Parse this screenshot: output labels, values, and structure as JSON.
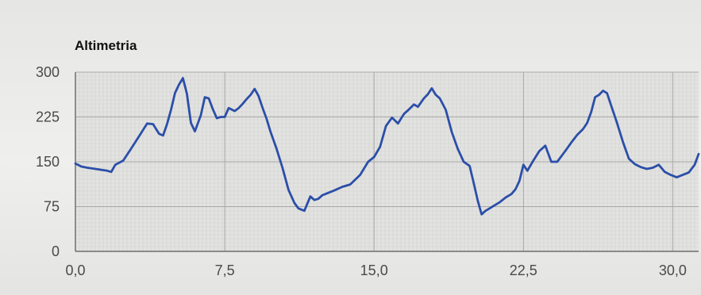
{
  "chart_data": {
    "type": "line",
    "title": "Altimetria",
    "xlabel": "",
    "ylabel": "",
    "xlim": [
      0,
      31.3
    ],
    "ylim": [
      0,
      300
    ],
    "x_ticks": [
      0,
      7.5,
      15,
      22.5,
      30
    ],
    "x_tick_labels": [
      "0,0",
      "7,5",
      "15,0",
      "22,5",
      "30,0"
    ],
    "y_ticks": [
      0,
      75,
      150,
      225,
      300
    ],
    "y_tick_labels": [
      "0",
      "75",
      "150",
      "225",
      "300"
    ],
    "grid": true,
    "legend": "none",
    "line_color": "#2b4ea8",
    "series": [
      {
        "x": [
          0,
          0.3,
          0.6,
          1.0,
          1.4,
          1.6,
          1.8,
          2.0,
          2.4,
          2.8,
          3.2,
          3.6,
          3.9,
          4.2,
          4.4,
          4.6,
          4.8,
          5.0,
          5.2,
          5.4,
          5.6,
          5.8,
          6.0,
          6.3,
          6.5,
          6.7,
          6.9,
          7.1,
          7.3,
          7.5,
          7.7,
          8.0,
          8.2,
          8.4,
          8.6,
          8.8,
          9.0,
          9.2,
          9.4,
          9.6,
          9.8,
          10.1,
          10.4,
          10.7,
          11.0,
          11.2,
          11.5,
          11.8,
          12.0,
          12.2,
          12.4,
          12.7,
          13.0,
          13.4,
          13.8,
          14.3,
          14.7,
          15.0,
          15.3,
          15.6,
          15.9,
          16.2,
          16.5,
          16.7,
          17.0,
          17.2,
          17.5,
          17.7,
          17.9,
          18.1,
          18.3,
          18.6,
          18.9,
          19.2,
          19.5,
          19.8,
          20.0,
          20.2,
          20.4,
          20.6,
          20.8,
          21.0,
          21.3,
          21.6,
          21.9,
          22.1,
          22.3,
          22.5,
          22.7,
          23.0,
          23.3,
          23.6,
          23.9,
          24.2,
          24.6,
          24.9,
          25.2,
          25.5,
          25.7,
          25.9,
          26.1,
          26.3,
          26.5,
          26.7,
          26.9,
          27.2,
          27.5,
          27.8,
          28.1,
          28.4,
          28.7,
          29.0,
          29.3,
          29.6,
          29.9,
          30.2,
          30.5,
          30.8,
          31.1,
          31.3
        ],
        "y": [
          147,
          142,
          140,
          138,
          136,
          135,
          133,
          145,
          152,
          172,
          193,
          214,
          213,
          197,
          194,
          213,
          237,
          265,
          279,
          290,
          264,
          215,
          201,
          228,
          258,
          256,
          238,
          223,
          225,
          225,
          240,
          235,
          240,
          247,
          255,
          262,
          272,
          260,
          240,
          222,
          200,
          172,
          140,
          103,
          81,
          72,
          68,
          92,
          86,
          88,
          94,
          98,
          102,
          108,
          112,
          128,
          150,
          158,
          175,
          210,
          224,
          214,
          230,
          236,
          246,
          242,
          256,
          263,
          273,
          262,
          256,
          237,
          200,
          172,
          150,
          143,
          115,
          86,
          62,
          68,
          72,
          76,
          82,
          90,
          96,
          104,
          118,
          145,
          135,
          152,
          168,
          177,
          150,
          150,
          168,
          182,
          195,
          205,
          215,
          233,
          258,
          262,
          269,
          265,
          245,
          215,
          183,
          155,
          146,
          141,
          138,
          140,
          145,
          133,
          128,
          124,
          128,
          132,
          145,
          163
        ]
      }
    ]
  }
}
